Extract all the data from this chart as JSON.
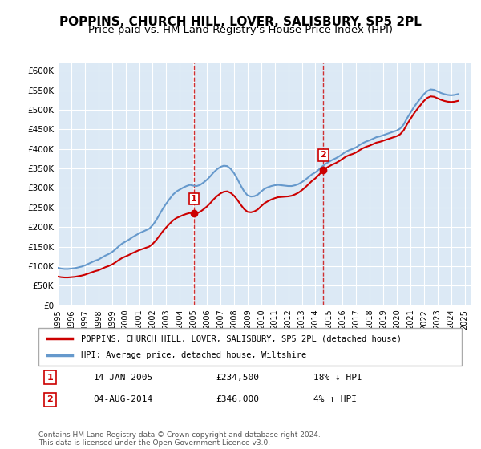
{
  "title": "POPPINS, CHURCH HILL, LOVER, SALISBURY, SP5 2PL",
  "subtitle": "Price paid vs. HM Land Registry's House Price Index (HPI)",
  "title_fontsize": 11,
  "subtitle_fontsize": 9.5,
  "background_color": "#dce9f5",
  "plot_bg_color": "#dce9f5",
  "ylabel_ticks": [
    "£0",
    "£50K",
    "£100K",
    "£150K",
    "£200K",
    "£250K",
    "£300K",
    "£350K",
    "£400K",
    "£450K",
    "£500K",
    "£550K",
    "£600K"
  ],
  "ytick_values": [
    0,
    50000,
    100000,
    150000,
    200000,
    250000,
    300000,
    350000,
    400000,
    450000,
    500000,
    550000,
    600000
  ],
  "ylim": [
    0,
    620000
  ],
  "xlim_start": 1995.0,
  "xlim_end": 2025.5,
  "xtick_labels": [
    "1995",
    "1996",
    "1997",
    "1998",
    "1999",
    "2000",
    "2001",
    "2002",
    "2003",
    "2004",
    "2005",
    "2006",
    "2007",
    "2008",
    "2009",
    "2010",
    "2011",
    "2012",
    "2013",
    "2014",
    "2015",
    "2016",
    "2017",
    "2018",
    "2019",
    "2020",
    "2021",
    "2022",
    "2023",
    "2024",
    "2025"
  ],
  "marker1_x": 2005.04,
  "marker1_y": 234500,
  "marker2_x": 2014.59,
  "marker2_y": 346000,
  "marker1_label": "1",
  "marker2_label": "2",
  "sale_color": "#cc0000",
  "hpi_color": "#6699cc",
  "legend_sale_label": "POPPINS, CHURCH HILL, LOVER, SALISBURY, SP5 2PL (detached house)",
  "legend_hpi_label": "HPI: Average price, detached house, Wiltshire",
  "info1_num": "1",
  "info1_date": "14-JAN-2005",
  "info1_price": "£234,500",
  "info1_hpi": "18% ↓ HPI",
  "info2_num": "2",
  "info2_date": "04-AUG-2014",
  "info2_price": "£346,000",
  "info2_hpi": "4% ↑ HPI",
  "footnote": "Contains HM Land Registry data © Crown copyright and database right 2024.\nThis data is licensed under the Open Government Licence v3.0.",
  "hpi_data_x": [
    1995.0,
    1995.25,
    1995.5,
    1995.75,
    1996.0,
    1996.25,
    1996.5,
    1996.75,
    1997.0,
    1997.25,
    1997.5,
    1997.75,
    1998.0,
    1998.25,
    1998.5,
    1998.75,
    1999.0,
    1999.25,
    1999.5,
    1999.75,
    2000.0,
    2000.25,
    2000.5,
    2000.75,
    2001.0,
    2001.25,
    2001.5,
    2001.75,
    2002.0,
    2002.25,
    2002.5,
    2002.75,
    2003.0,
    2003.25,
    2003.5,
    2003.75,
    2004.0,
    2004.25,
    2004.5,
    2004.75,
    2005.0,
    2005.25,
    2005.5,
    2005.75,
    2006.0,
    2006.25,
    2006.5,
    2006.75,
    2007.0,
    2007.25,
    2007.5,
    2007.75,
    2008.0,
    2008.25,
    2008.5,
    2008.75,
    2009.0,
    2009.25,
    2009.5,
    2009.75,
    2010.0,
    2010.25,
    2010.5,
    2010.75,
    2011.0,
    2011.25,
    2011.5,
    2011.75,
    2012.0,
    2012.25,
    2012.5,
    2012.75,
    2013.0,
    2013.25,
    2013.5,
    2013.75,
    2014.0,
    2014.25,
    2014.5,
    2014.75,
    2015.0,
    2015.25,
    2015.5,
    2015.75,
    2016.0,
    2016.25,
    2016.5,
    2016.75,
    2017.0,
    2017.25,
    2017.5,
    2017.75,
    2018.0,
    2018.25,
    2018.5,
    2018.75,
    2019.0,
    2019.25,
    2019.5,
    2019.75,
    2020.0,
    2020.25,
    2020.5,
    2020.75,
    2021.0,
    2021.25,
    2021.5,
    2021.75,
    2022.0,
    2022.25,
    2022.5,
    2022.75,
    2023.0,
    2023.25,
    2023.5,
    2023.75,
    2024.0,
    2024.25,
    2024.5
  ],
  "hpi_data_y": [
    96000,
    94000,
    93000,
    93000,
    94000,
    95000,
    97000,
    99000,
    102000,
    106000,
    110000,
    114000,
    117000,
    122000,
    127000,
    131000,
    136000,
    143000,
    151000,
    158000,
    163000,
    168000,
    174000,
    179000,
    184000,
    188000,
    192000,
    196000,
    205000,
    217000,
    232000,
    247000,
    260000,
    272000,
    283000,
    291000,
    296000,
    301000,
    305000,
    308000,
    306000,
    305000,
    308000,
    314000,
    321000,
    330000,
    340000,
    348000,
    354000,
    357000,
    356000,
    349000,
    338000,
    323000,
    306000,
    291000,
    281000,
    278000,
    279000,
    283000,
    291000,
    298000,
    302000,
    305000,
    307000,
    308000,
    307000,
    306000,
    305000,
    305000,
    307000,
    310000,
    315000,
    321000,
    328000,
    335000,
    340000,
    347000,
    355000,
    362000,
    367000,
    372000,
    376000,
    381000,
    387000,
    393000,
    397000,
    400000,
    404000,
    410000,
    415000,
    419000,
    422000,
    426000,
    430000,
    432000,
    435000,
    438000,
    441000,
    444000,
    447000,
    452000,
    462000,
    478000,
    492000,
    506000,
    518000,
    529000,
    540000,
    548000,
    552000,
    551000,
    547000,
    543000,
    540000,
    538000,
    537000,
    538000,
    540000
  ],
  "sale_data_x": [
    2005.04,
    2014.59
  ],
  "sale_data_y": [
    234500,
    346000
  ]
}
